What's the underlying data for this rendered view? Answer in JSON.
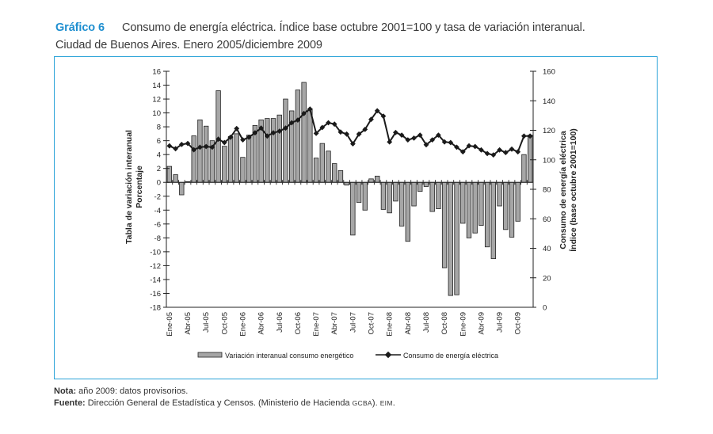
{
  "header": {
    "figure_number": "Gráfico 6",
    "title_line1": "Consumo de energía eléctrica. Índice base octubre 2001=100 y tasa de variación interanual.",
    "title_line2": "Ciudad de Buenos Aires. Enero 2005/diciembre 2009"
  },
  "notes": {
    "nota_label": "Nota:",
    "nota_text": " año 2009: datos provisorios.",
    "fuente_label": "Fuente:",
    "fuente_text": " Dirección General de Estadística y Censos. (Ministerio de Hacienda ",
    "fuente_sc1": "gcba",
    "fuente_mid": "). ",
    "fuente_sc2": "eim",
    "fuente_end": "."
  },
  "colors": {
    "accent": "#1f8fd0",
    "frame": "#2aa3d8",
    "bar_fill": "#a6a6a6",
    "bar_stroke": "#222222",
    "line": "#1a1a1a"
  },
  "chart_data": {
    "type": "bar+line",
    "title": "Consumo de energía eléctrica. Índice base octubre 2001=100 y tasa de variación interanual.",
    "y_left_label_line1": "Tabla de variación interanual",
    "y_left_label_line2": "Porcentaje",
    "y_right_label_line1": "Consumo de energía eléctrica",
    "y_right_label_line2": "Índice (base octubre 2001=100)",
    "y_left_range": [
      -18,
      16
    ],
    "y_left_ticks": [
      16,
      14,
      12,
      10,
      8,
      6,
      4,
      2,
      0,
      -2,
      -4,
      -6,
      -8,
      -10,
      -12,
      -14,
      -16,
      -18
    ],
    "y_right_range": [
      0,
      160
    ],
    "y_right_ticks": [
      160,
      140,
      120,
      100,
      80,
      60,
      40,
      20,
      0
    ],
    "x_tick_labels": [
      "Ene-05",
      "Abr-05",
      "Jul-05",
      "Oct-05",
      "Ene-06",
      "Abr-06",
      "Jul-06",
      "Oct-06",
      "Ene-07",
      "Abr-07",
      "Jul-07",
      "Oct-07",
      "Ene-08",
      "Abr-08",
      "Jul-08",
      "Oct-08",
      "Ene-09",
      "Abr-09",
      "Jul-09",
      "Oct-09"
    ],
    "x_tick_every_months": 3,
    "months_count": 60,
    "legend_position": "bottom",
    "series": [
      {
        "name": "Variación interanual consumo energético",
        "type": "bar",
        "axis": "left",
        "values": [
          2.3,
          1.1,
          -1.8,
          0.1,
          6.7,
          9.0,
          8.1,
          6.0,
          13.2,
          5.2,
          6.6,
          7.0,
          3.6,
          6.8,
          8.2,
          9.0,
          9.2,
          9.2,
          9.7,
          12.0,
          10.3,
          13.3,
          14.4,
          10.6,
          3.5,
          5.6,
          4.5,
          2.7,
          1.7,
          -0.4,
          -7.6,
          -2.9,
          -4.0,
          0.5,
          0.9,
          -3.9,
          -4.4,
          -2.7,
          -6.3,
          -8.5,
          -3.4,
          -1.3,
          -0.6,
          -4.2,
          -3.8,
          -12.3,
          -16.3,
          -16.2,
          -5.9,
          -8.0,
          -7.3,
          -6.2,
          -9.3,
          -11.0,
          -3.4,
          -6.8,
          -7.9,
          -5.6,
          4.0,
          6.8
        ]
      },
      {
        "name": "Consumo de energía eléctrica",
        "type": "line",
        "axis": "right",
        "values": [
          109.4,
          107.5,
          110.4,
          111.1,
          106.8,
          108.5,
          109.0,
          108.5,
          114.0,
          111.7,
          115.3,
          121.2,
          113.5,
          115.3,
          118.3,
          121.5,
          116.1,
          118.3,
          119.4,
          121.5,
          125.1,
          126.9,
          131.4,
          134.4,
          117.9,
          121.9,
          125.1,
          124.2,
          118.8,
          117.4,
          110.8,
          117.4,
          120.6,
          127.4,
          133.2,
          129.6,
          112.1,
          118.5,
          116.7,
          113.5,
          114.7,
          116.7,
          110.2,
          113.5,
          116.7,
          112.1,
          111.7,
          108.5,
          105.4,
          109.5,
          109.0,
          106.7,
          104.2,
          103.3,
          106.7,
          104.9,
          107.2,
          105.4,
          116.1,
          116.1
        ]
      }
    ]
  }
}
